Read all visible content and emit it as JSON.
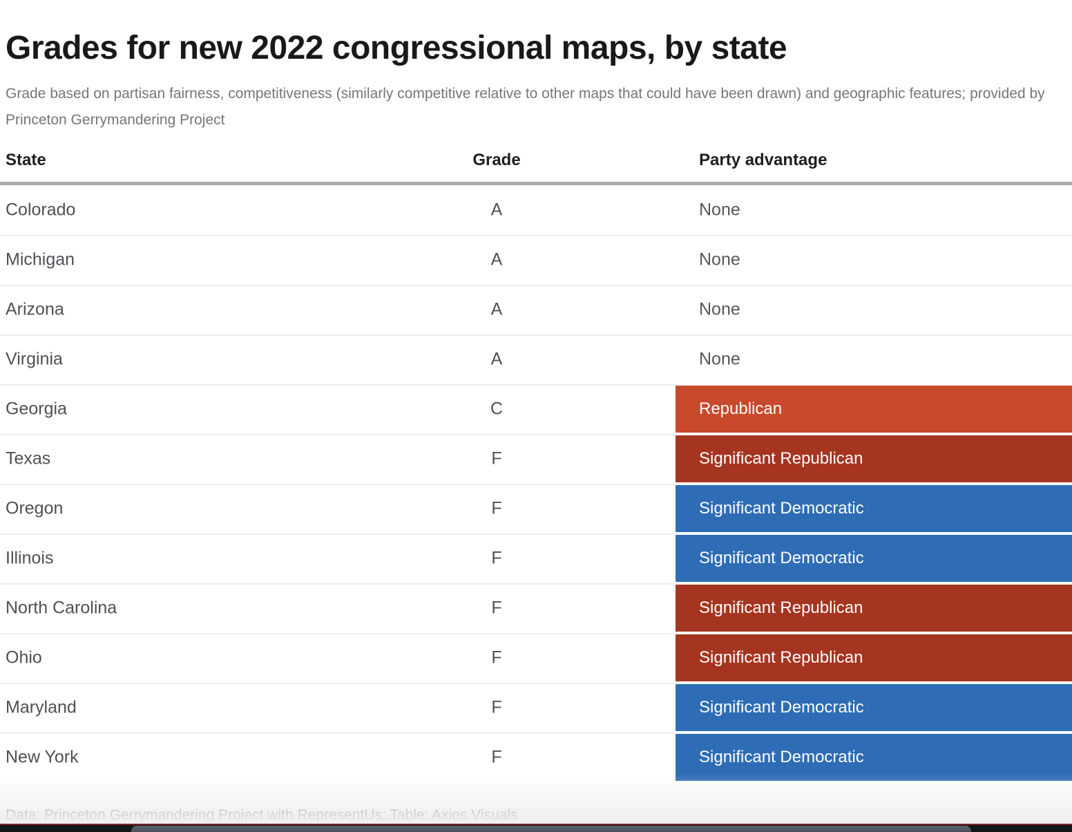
{
  "title": "Grades for new 2022 congressional maps, by state",
  "subtitle": "Grade based on partisan fairness, competitiveness (similarly competitive relative to other maps that could have been drawn) and geographic features; provided by Princeton Gerrymandering Project",
  "columns": {
    "state": "State",
    "grade": "Grade",
    "party": "Party advantage"
  },
  "chart_data": {
    "type": "table",
    "title": "Grades for new 2022 congressional maps, by state",
    "columns": [
      "State",
      "Grade",
      "Party advantage"
    ],
    "rows": [
      {
        "state": "Colorado",
        "grade": "A",
        "party": "None",
        "party_type": "none"
      },
      {
        "state": "Michigan",
        "grade": "A",
        "party": "None",
        "party_type": "none"
      },
      {
        "state": "Arizona",
        "grade": "A",
        "party": "None",
        "party_type": "none"
      },
      {
        "state": "Virginia",
        "grade": "A",
        "party": "None",
        "party_type": "none"
      },
      {
        "state": "Georgia",
        "grade": "C",
        "party": "Republican",
        "party_type": "republican"
      },
      {
        "state": "Texas",
        "grade": "F",
        "party": "Significant Republican",
        "party_type": "significant_republican"
      },
      {
        "state": "Oregon",
        "grade": "F",
        "party": "Significant Democratic",
        "party_type": "significant_democratic"
      },
      {
        "state": "Illinois",
        "grade": "F",
        "party": "Significant Democratic",
        "party_type": "significant_democratic"
      },
      {
        "state": "North Carolina",
        "grade": "F",
        "party": "Significant Republican",
        "party_type": "significant_republican"
      },
      {
        "state": "Ohio",
        "grade": "F",
        "party": "Significant Republican",
        "party_type": "significant_republican"
      },
      {
        "state": "Maryland",
        "grade": "F",
        "party": "Significant Democratic",
        "party_type": "significant_democratic"
      },
      {
        "state": "New York",
        "grade": "F",
        "party": "Significant Democratic",
        "party_type": "significant_democratic"
      }
    ]
  },
  "colors": {
    "republican": "#c9492c",
    "significant_republican": "#a53520",
    "significant_democratic": "#2e6db6"
  },
  "footer": {
    "credit": "Data: Princeton Gerrymandering Project with RepresentUs; Table: Axios Visuals"
  }
}
